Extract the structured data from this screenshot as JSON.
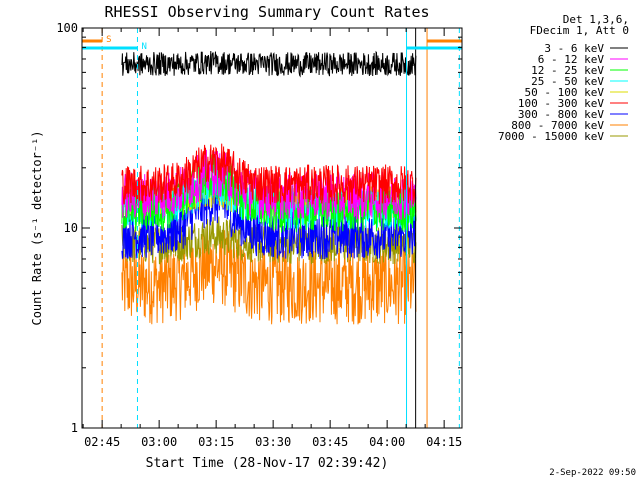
{
  "chart_data": {
    "type": "line",
    "title": "RHESSI Observing Summary Count Rates",
    "xlabel": "Start Time (28-Nov-17 02:39:42)",
    "ylabel": "Count Rate (s⁻¹ detector⁻¹)",
    "yscale": "log",
    "ylim": [
      1,
      100
    ],
    "xlim_minutes": [
      0,
      100
    ],
    "yticks": [
      {
        "value": 1,
        "label": "1"
      },
      {
        "value": 10,
        "label": "10"
      },
      {
        "value": 100,
        "label": "100"
      }
    ],
    "xticks": [
      {
        "minute": 5.3,
        "label": "02:45"
      },
      {
        "minute": 20.3,
        "label": "03:00"
      },
      {
        "minute": 35.3,
        "label": "03:15"
      },
      {
        "minute": 50.3,
        "label": "03:30"
      },
      {
        "minute": 65.3,
        "label": "03:45"
      },
      {
        "minute": 80.3,
        "label": "04:00"
      },
      {
        "minute": 95.3,
        "label": "04:15"
      }
    ],
    "legend_header": [
      "Det 1,3,6,",
      "FDecim 1, Att 0"
    ],
    "legend_position": "right",
    "flags": [
      {
        "code": "S",
        "color": "#ff8000",
        "intervals": [
          [
            0,
            5.3
          ],
          [
            90.8,
            100
          ]
        ]
      },
      {
        "code": "N",
        "color": "#00e0ff",
        "intervals": [
          [
            0,
            14.6
          ],
          [
            85.4,
            100
          ]
        ]
      }
    ],
    "vertical_markers": [
      {
        "minute": 5.3,
        "color": "#ff8000",
        "style": "dashed"
      },
      {
        "minute": 14.6,
        "color": "#00e0ff",
        "style": "dashed"
      },
      {
        "minute": 85.4,
        "color": "#00e0ff",
        "style": "solid"
      },
      {
        "minute": 87.8,
        "color": "#000000",
        "style": "solid"
      },
      {
        "minute": 90.8,
        "color": "#ff8000",
        "style": "solid"
      },
      {
        "minute": 99.3,
        "color": "#00e0ff",
        "style": "dashed"
      }
    ],
    "data_start_minute": 10.5,
    "data_end_minute": 87.8,
    "flare_peak_minute": 34.5,
    "series": [
      {
        "name": "3 - 6 keV",
        "color": "#000000",
        "baseline": 66,
        "peak": 67,
        "noise": 0.06
      },
      {
        "name": "6 - 12 keV",
        "color": "#ff00ff",
        "baseline": 14.5,
        "peak": 19,
        "noise": 0.12
      },
      {
        "name": "12 - 25 keV",
        "color": "#00ff00",
        "baseline": 12.5,
        "peak": 18.5,
        "noise": 0.12
      },
      {
        "name": "25 - 50 keV",
        "color": "#00ffff",
        "baseline": 12.5,
        "peak": 16.5,
        "noise": 0.1
      },
      {
        "name": "50 - 100 keV",
        "color": "#dddd00",
        "baseline": 13.5,
        "peak": 15,
        "noise": 0.08
      },
      {
        "name": "100 - 300 keV",
        "color": "#ff0000",
        "baseline": 16.5,
        "peak": 21.5,
        "noise": 0.1
      },
      {
        "name": "300 - 800 keV",
        "color": "#0000ff",
        "baseline": 9.2,
        "peak": 13.5,
        "noise": 0.12
      },
      {
        "name": "800 - 7000 keV",
        "color": "#ff8000",
        "baseline": 5.2,
        "peak": 6.5,
        "noise": 0.2
      },
      {
        "name": "7000 - 15000 keV",
        "color": "#999900",
        "baseline": 8.3,
        "peak": 9.2,
        "noise": 0.1
      }
    ]
  },
  "footer": {
    "timestamp": "2-Sep-2022 09:50"
  }
}
